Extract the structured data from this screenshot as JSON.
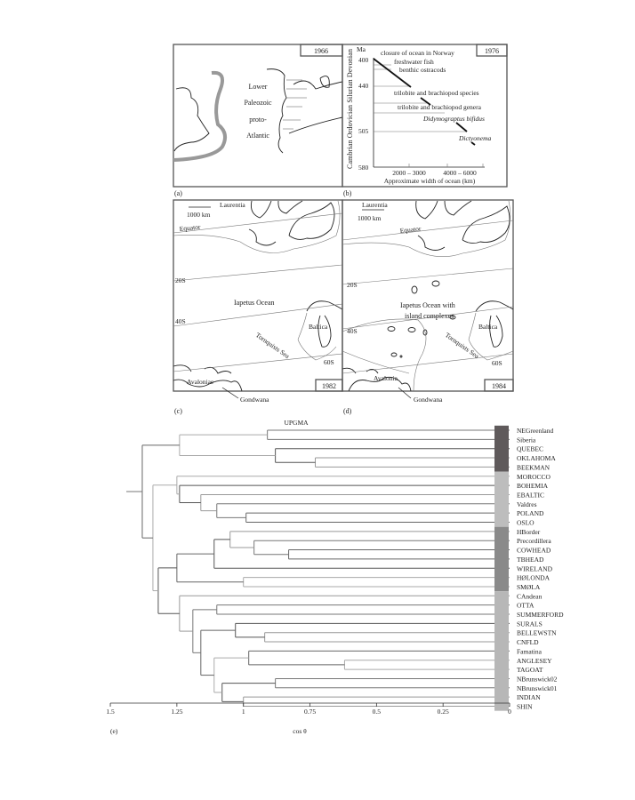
{
  "panels": {
    "a": {
      "tag": "(a)",
      "year": "1966",
      "labels": [
        "Lower",
        "Paleozoic",
        "proto-",
        "Atlantic"
      ]
    },
    "b": {
      "tag": "(b)",
      "year": "1976",
      "unit": "Ma",
      "periods": "Cambrian  Ordovician  Silurian  Devonian",
      "y_ticks": [
        "400",
        "440",
        "505",
        "580"
      ],
      "x_ticks": [
        "2000 – 3000",
        "4000 – 6000"
      ],
      "xlabel": "Approximate width of ocean (km)",
      "events": [
        "closure of ocean in Norway",
        "freshwater fish",
        "benthic ostracods",
        "trilobite and brachiopod species",
        "trilobite and brachiopod genera",
        "Didymograptus bifidus",
        "Dictyonema"
      ]
    },
    "c": {
      "tag": "(c)",
      "year": "1982",
      "scale": "1000 km",
      "laurentia": "Laurentia",
      "equator": "Equator",
      "s20": "20S",
      "s40": "40S",
      "s60": "60S",
      "ocean": "Iapetus Ocean",
      "baltica": "Baltica",
      "sea": "Tornquists Sea",
      "avalonia": "Avaloniae",
      "gondwana": "Gondwana"
    },
    "d": {
      "tag": "(d)",
      "year": "1984",
      "scale": "1000 km",
      "laurentia": "Laurentia",
      "equator": "Equator",
      "s20": "20S",
      "s40": "40S",
      "s60": "60S",
      "ocean1": "Iapetus Ocean with",
      "ocean2": "island complexes",
      "baltica": "Baltica",
      "sea": "Tornquists Sea",
      "avalonia": "Avalonia",
      "gondwana": "Gondwana"
    }
  },
  "chart_data": {
    "type": "dendrogram",
    "tag": "(e)",
    "title": "UPGMA",
    "xlabel": "cos θ",
    "xlim": [
      1.5,
      0
    ],
    "x_ticks": [
      "1.5",
      "1.25",
      "1",
      "0.75",
      "0.5",
      "0.25",
      "0"
    ],
    "leaves": [
      "NEGreenland",
      "Siberia",
      "QUEBEC",
      "OKLAHOMA",
      "BEEKMAN",
      "MOROCCO",
      "BOHEMIA",
      "EBALTIC",
      "Valdres",
      "POLAND",
      "OSLO",
      "HBorder",
      "Precordillera",
      "COWHEAD",
      "TBHEAD",
      "WIRELAND",
      "HØLONDA",
      "SMØLA",
      "CAndean",
      "OTTA",
      "SUMMERFORD",
      "SURALS",
      "BELLEWSTN",
      "CNFLD",
      "Famatina",
      "ANGLESEY",
      "TAGOAT",
      "NBrunswick02",
      "NBrunswick01",
      "INDIAN",
      "SHIN"
    ],
    "groups": [
      {
        "count": 5,
        "color": "#5f5a5b"
      },
      {
        "count": 6,
        "color": "#bdbdbd"
      },
      {
        "count": 7,
        "color": "#8a8a8a"
      },
      {
        "count": 13,
        "color": "#b7b7b7"
      }
    ],
    "tree": {
      "h": 1.38,
      "c": [
        {
          "h": 1.24,
          "c": [
            {
              "h": 0.91,
              "c": [
                "NEGreenland",
                "Siberia"
              ]
            },
            {
              "h": 0.88,
              "c": [
                "QUEBEC",
                {
                  "h": 0.73,
                  "c": [
                    "OKLAHOMA",
                    "BEEKMAN"
                  ]
                }
              ]
            }
          ]
        },
        {
          "h": 1.34,
          "c": [
            {
              "h": 1.25,
              "c": [
                "MOROCCO",
                {
                  "h": 1.24,
                  "c": [
                    "BOHEMIA",
                    {
                      "h": 1.16,
                      "c": [
                        "EBALTIC",
                        {
                          "h": 1.1,
                          "c": [
                            "Valdres",
                            {
                              "h": 0.99,
                              "c": [
                                "POLAND",
                                "OSLO"
                              ]
                            }
                          ]
                        }
                      ]
                    }
                  ]
                }
              ]
            },
            {
              "h": 1.32,
              "c": [
                {
                  "h": 1.25,
                  "c": [
                    {
                      "h": 1.11,
                      "c": [
                        {
                          "h": 1.05,
                          "c": [
                            "HBorder",
                            {
                              "h": 0.96,
                              "c": [
                                "Precordillera",
                                {
                                  "h": 0.83,
                                  "c": [
                                    "COWHEAD",
                                    "TBHEAD"
                                  ]
                                }
                              ]
                            }
                          ]
                        },
                        "WIRELAND"
                      ]
                    },
                    {
                      "h": 1.0,
                      "c": [
                        "HØLONDA",
                        "SMØLA"
                      ]
                    }
                  ]
                },
                {
                  "h": 1.24,
                  "c": [
                    "CAndean",
                    {
                      "h": 1.19,
                      "c": [
                        {
                          "h": 1.1,
                          "c": [
                            "OTTA",
                            "SUMMERFORD"
                          ]
                        },
                        {
                          "h": 1.16,
                          "c": [
                            {
                              "h": 1.03,
                              "c": [
                                "SURALS",
                                {
                                  "h": 0.92,
                                  "c": [
                                    "BELLEWSTN",
                                    "CNFLD"
                                  ]
                                }
                              ]
                            },
                            {
                              "h": 1.11,
                              "c": [
                                {
                                  "h": 0.98,
                                  "c": [
                                    "Famatina",
                                    {
                                      "h": 0.62,
                                      "c": [
                                        "ANGLESEY",
                                        "TAGOAT"
                                      ]
                                    }
                                  ]
                                },
                                {
                                  "h": 1.08,
                                  "c": [
                                    {
                                      "h": 0.88,
                                      "c": [
                                        "NBrunswick02",
                                        "NBrunswick01"
                                      ]
                                    },
                                    {
                                      "h": 1.0,
                                      "c": [
                                        "INDIAN",
                                        "SHIN"
                                      ]
                                    }
                                  ]
                                }
                              ]
                            }
                          ]
                        }
                      ]
                    }
                  ]
                }
              ]
            }
          ]
        }
      ]
    }
  }
}
